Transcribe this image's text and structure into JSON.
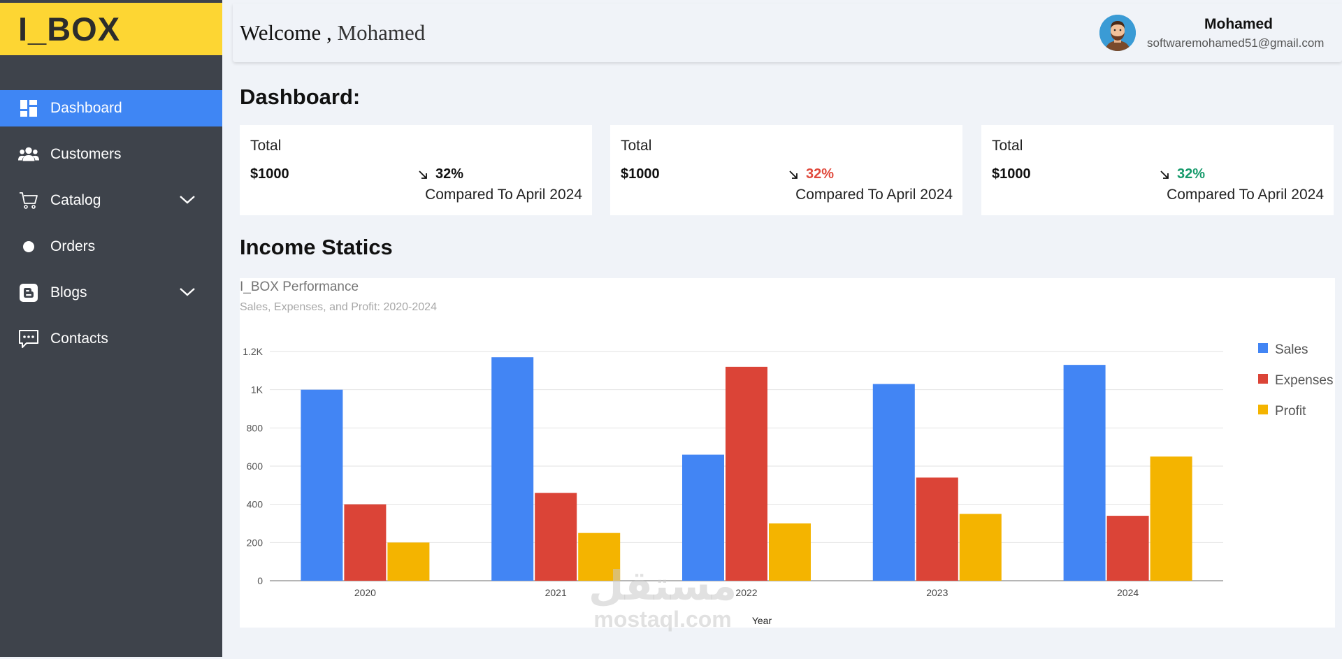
{
  "sidebar": {
    "logo": "I_BOX",
    "items": [
      {
        "label": "Dashboard",
        "icon": "dashboard-icon",
        "active": true,
        "has_submenu": false
      },
      {
        "label": "Customers",
        "icon": "users-icon",
        "active": false,
        "has_submenu": false
      },
      {
        "label": "Catalog",
        "icon": "cart-icon",
        "active": false,
        "has_submenu": true
      },
      {
        "label": "Orders",
        "icon": "dot-icon",
        "active": false,
        "has_submenu": false
      },
      {
        "label": "Blogs",
        "icon": "blogger-icon",
        "active": false,
        "has_submenu": true
      },
      {
        "label": "Contacts",
        "icon": "chat-icon",
        "active": false,
        "has_submenu": false
      }
    ]
  },
  "header": {
    "welcome": "Welcome ,",
    "welcome_name": "Mohamed",
    "user_name": "Mohamed",
    "user_email": "softwaremohamed51@gmail.com"
  },
  "main": {
    "dashboard_title": "Dashboard:",
    "income_title": "Income Statics",
    "cards": [
      {
        "label": "Total",
        "value": "$1000",
        "percent": "32%",
        "percent_color": "#111111",
        "compare": "Compared To April 2024"
      },
      {
        "label": "Total",
        "value": "$1000",
        "percent": "32%",
        "percent_color": "#e0483b",
        "compare": "Compared To April 2024"
      },
      {
        "label": "Total",
        "value": "$1000",
        "percent": "32%",
        "percent_color": "#169a6b",
        "compare": "Compared To April 2024"
      }
    ]
  },
  "watermark": {
    "arabic": "مستقل",
    "latin": "mostaql.com"
  },
  "chart_data": {
    "type": "bar",
    "title": "I_BOX Performance",
    "subtitle": "Sales, Expenses, and Profit: 2020-2024",
    "xlabel": "Year",
    "ylabel": "",
    "categories": [
      "2020",
      "2021",
      "2022",
      "2023",
      "2024"
    ],
    "series": [
      {
        "name": "Sales",
        "color": "#4285f4",
        "values": [
          1000,
          1170,
          660,
          1030,
          1130
        ]
      },
      {
        "name": "Expenses",
        "color": "#db4437",
        "values": [
          400,
          460,
          1120,
          540,
          340
        ]
      },
      {
        "name": "Profit",
        "color": "#f4b400",
        "values": [
          200,
          250,
          300,
          350,
          650
        ]
      }
    ],
    "ylim": [
      0,
      1200
    ],
    "yticks": [
      0,
      200,
      400,
      600,
      800,
      1000,
      1200
    ],
    "ytick_labels": [
      "0",
      "200",
      "400",
      "600",
      "800",
      "1K",
      "1.2K"
    ],
    "grid": true,
    "legend_position": "right"
  }
}
